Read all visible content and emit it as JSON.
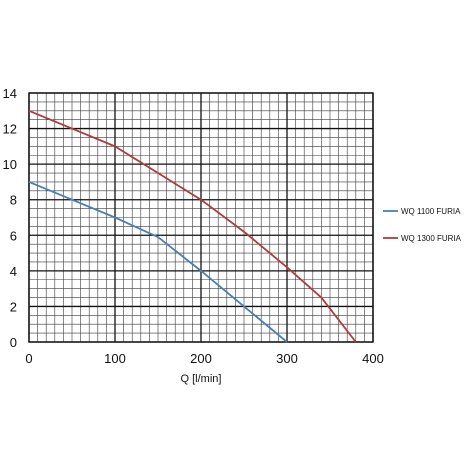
{
  "chart_data": {
    "type": "line",
    "title": "",
    "xlabel": "Q [l/min]",
    "ylabel": "",
    "xlim": [
      0,
      400
    ],
    "ylim": [
      0,
      14
    ],
    "xticks": [
      0,
      100,
      200,
      300,
      400
    ],
    "yticks": [
      0,
      2,
      4,
      6,
      8,
      10,
      12,
      14
    ],
    "grid": true,
    "legend_position": "right",
    "series": [
      {
        "name": "WQ 1100 FURIA",
        "color": "#4a7fb5",
        "x": [
          0,
          50,
          100,
          150,
          200,
          250,
          300
        ],
        "y": [
          9,
          8,
          7,
          5.9,
          4,
          2,
          0
        ]
      },
      {
        "name": "WQ 1300 FURIA",
        "color": "#b23a3a",
        "x": [
          0,
          50,
          100,
          150,
          200,
          250,
          300,
          340,
          380
        ],
        "y": [
          13,
          12,
          11,
          9.5,
          8,
          6.2,
          4.2,
          2.5,
          0
        ]
      }
    ]
  }
}
